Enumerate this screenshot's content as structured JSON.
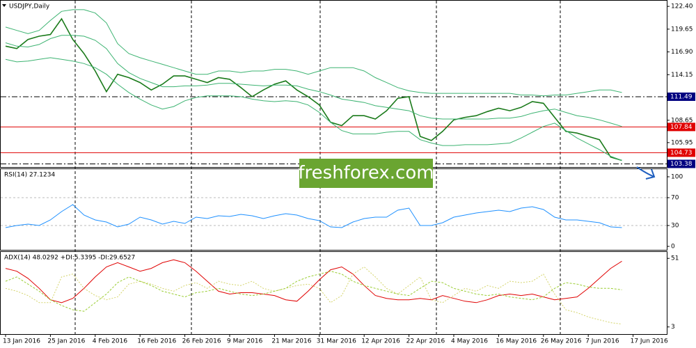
{
  "watermark": "freshforex.com",
  "chart_data": [
    {
      "type": "line",
      "title": "USDJPY,Daily",
      "categories": [
        "13 Jan 2016",
        null,
        null,
        null,
        "25 Jan 2016",
        null,
        null,
        null,
        "4 Feb 2016",
        null,
        null,
        null,
        "16 Feb 2016",
        null,
        null,
        null,
        "26 Feb 2016",
        null,
        null,
        null,
        "9 Mar 2016",
        null,
        null,
        null,
        "21 Mar 2016",
        null,
        null,
        null,
        "31 Mar 2016",
        null,
        null,
        null,
        "12 Apr 2016",
        null,
        null,
        null,
        "22 Apr 2016",
        null,
        null,
        null,
        "4 May 2016",
        null,
        null,
        null,
        "16 May 2016",
        null,
        null,
        null,
        "26 May 2016",
        null,
        null,
        null,
        "7 Jun 2016",
        null,
        null,
        null,
        "17 Jun 2016"
      ],
      "ylim": [
        103,
        123
      ],
      "yticks": [
        {
          "value": 122.4,
          "label": "122.40"
        },
        119.65,
        {
          "value": 116.9,
          "label": "116.90"
        },
        114.15,
        108.65,
        105.95
      ],
      "levels": [
        {
          "value": 111.49,
          "color": "#000080",
          "style": "dashdot"
        },
        {
          "value": 107.84,
          "color": "#e00000",
          "style": "solid"
        },
        {
          "value": 104.73,
          "color": "#e00000",
          "style": "solid"
        },
        {
          "value": 103.38,
          "color": "#000080",
          "style": "dashdot"
        }
      ],
      "series": [
        {
          "color": "#1a7a1a",
          "width": 1.6,
          "values": [
            117.6,
            117.3,
            118.4,
            118.8,
            119.0,
            120.9,
            118.4,
            116.7,
            114.6,
            112.1,
            114.2,
            113.8,
            113.2,
            112.3,
            113.0,
            114.0,
            114.0,
            113.6,
            113.2,
            113.8,
            113.6,
            112.6,
            111.5,
            112.3,
            113.0,
            113.4,
            112.3,
            111.5,
            110.5,
            108.4,
            108.0,
            109.2,
            109.2,
            108.8,
            109.8,
            111.3,
            111.5,
            106.7,
            106.2,
            107.3,
            108.7,
            109.0,
            109.2,
            109.7,
            110.1,
            109.8,
            110.2,
            110.9,
            110.7,
            109.0,
            107.3,
            107.1,
            106.7,
            106.3,
            104.2,
            103.8,
            null
          ]
        },
        {
          "color": "#3cb371",
          "width": 1,
          "values": [
            119.9,
            119.5,
            119.1,
            119.5,
            120.7,
            121.8,
            122.0,
            122.0,
            121.6,
            120.4,
            117.9,
            116.7,
            116.2,
            115.8,
            115.4,
            115.0,
            114.6,
            114.2,
            114.2,
            114.6,
            114.6,
            114.4,
            114.6,
            114.6,
            114.8,
            114.8,
            114.6,
            114.2,
            114.6,
            115.0,
            115.0,
            115.0,
            114.6,
            113.8,
            113.2,
            112.6,
            112.2,
            112.0,
            111.9,
            111.9,
            111.9,
            111.9,
            111.9,
            111.9,
            111.9,
            111.9,
            111.7,
            111.7,
            111.6,
            111.7,
            111.7,
            111.9,
            112.1,
            112.3,
            112.3,
            112.0,
            null
          ]
        },
        {
          "color": "#3cb371",
          "width": 1,
          "values": [
            118.0,
            117.6,
            117.5,
            117.8,
            118.5,
            118.9,
            118.9,
            118.8,
            118.3,
            117.3,
            115.5,
            114.4,
            113.7,
            113.2,
            112.7,
            112.7,
            112.8,
            112.8,
            112.9,
            113.1,
            113.1,
            113.0,
            112.9,
            112.8,
            112.9,
            112.9,
            112.8,
            112.4,
            112.1,
            111.7,
            111.2,
            111.0,
            110.8,
            110.4,
            110.2,
            110.0,
            109.8,
            109.2,
            108.9,
            108.8,
            108.8,
            108.8,
            108.8,
            108.8,
            108.9,
            108.9,
            109.1,
            109.5,
            109.8,
            110.0,
            109.6,
            109.2,
            109.0,
            108.7,
            108.3,
            107.9,
            null
          ]
        },
        {
          "color": "#3cb371",
          "width": 1,
          "values": [
            116.0,
            115.7,
            115.8,
            116.0,
            116.2,
            116.0,
            115.8,
            115.5,
            115.0,
            114.2,
            113.0,
            112.0,
            111.2,
            110.5,
            110.0,
            110.3,
            111.0,
            111.4,
            111.6,
            111.6,
            111.6,
            111.5,
            111.2,
            111.0,
            110.9,
            111.0,
            110.9,
            110.5,
            109.6,
            108.4,
            107.4,
            107.0,
            107.0,
            107.0,
            107.2,
            107.3,
            107.3,
            106.3,
            105.9,
            105.6,
            105.6,
            105.7,
            105.7,
            105.7,
            105.8,
            105.9,
            106.5,
            107.2,
            107.9,
            108.3,
            107.4,
            106.5,
            105.8,
            105.1,
            104.3,
            103.8,
            null
          ]
        }
      ]
    },
    {
      "type": "line",
      "title": "RSI(14) 27.1234",
      "ylim": [
        -5,
        110
      ],
      "yticks": [
        0,
        30,
        70,
        100
      ],
      "grid_ticks": [
        30,
        70
      ],
      "series": [
        {
          "color": "#1e90ff",
          "width": 1,
          "values": [
            27,
            30,
            32,
            30,
            38,
            50,
            60,
            45,
            38,
            35,
            28,
            32,
            42,
            38,
            32,
            36,
            33,
            42,
            40,
            44,
            43,
            46,
            44,
            40,
            44,
            47,
            45,
            40,
            37,
            28,
            27,
            35,
            40,
            42,
            42,
            52,
            55,
            30,
            30,
            34,
            42,
            45,
            48,
            50,
            52,
            50,
            55,
            57,
            53,
            42,
            38,
            38,
            36,
            34,
            28,
            27,
            null
          ]
        }
      ]
    },
    {
      "type": "line",
      "title": "ADX(14) 48.0292 +DI:5.3395 -DI:29.6527",
      "ylim": [
        -2,
        55
      ],
      "yticks": [
        3,
        51
      ],
      "series": [
        {
          "color": "#e00000",
          "width": 1,
          "dash": "none",
          "values": [
            44,
            42,
            37,
            30,
            22,
            20,
            23,
            30,
            38,
            45,
            48,
            45,
            42,
            44,
            48,
            50,
            48,
            42,
            35,
            28,
            26,
            27,
            27,
            26,
            25,
            22,
            21,
            28,
            36,
            43,
            45,
            40,
            32,
            25,
            23,
            22,
            22,
            23,
            22,
            25,
            23,
            21,
            20,
            22,
            25,
            26,
            25,
            26,
            24,
            22,
            23,
            24,
            30,
            37,
            44,
            49,
            null
          ]
        },
        {
          "color": "#d4d46a",
          "width": 1,
          "dash": "2 2",
          "values": [
            30,
            28,
            25,
            20,
            20,
            38,
            40,
            30,
            25,
            22,
            24,
            33,
            35,
            33,
            30,
            28,
            32,
            34,
            30,
            35,
            33,
            32,
            35,
            30,
            28,
            30,
            32,
            33,
            30,
            20,
            25,
            40,
            45,
            38,
            30,
            26,
            32,
            38,
            22,
            20,
            25,
            30,
            28,
            32,
            30,
            35,
            34,
            35,
            40,
            26,
            15,
            13,
            10,
            8,
            6,
            5,
            null
          ]
        },
        {
          "color": "#9acd32",
          "width": 1,
          "dash": "3 2",
          "values": [
            35,
            38,
            33,
            28,
            22,
            18,
            15,
            14,
            20,
            26,
            34,
            38,
            35,
            32,
            28,
            26,
            24,
            27,
            28,
            30,
            28,
            26,
            25,
            26,
            28,
            30,
            35,
            38,
            40,
            42,
            40,
            35,
            32,
            30,
            28,
            26,
            25,
            30,
            35,
            34,
            30,
            28,
            26,
            25,
            26,
            24,
            23,
            22,
            24,
            30,
            34,
            33,
            31,
            30,
            30,
            29,
            null
          ]
        }
      ]
    }
  ]
}
